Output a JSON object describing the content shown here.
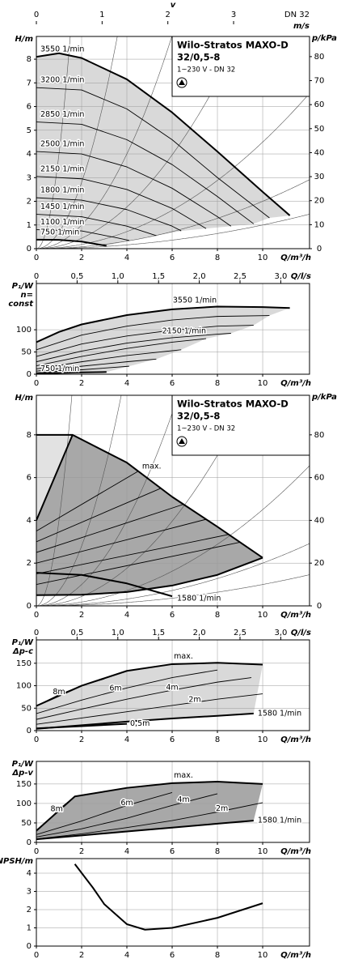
{
  "chart_data": [
    {
      "type": "line",
      "y_label": [
        "H/m"
      ],
      "y2_label": "p/kPa",
      "x_label": "Q/m³/h",
      "xlim": [
        0,
        12.07
      ],
      "xticks": [
        0,
        2,
        4,
        6,
        8,
        10
      ],
      "ylim": [
        0,
        8.96
      ],
      "yticks": [
        0,
        1,
        2,
        3,
        4,
        5,
        6,
        7,
        8
      ],
      "y2lim": [
        0,
        88.4
      ],
      "y2ticks": [
        0,
        10,
        20,
        30,
        40,
        50,
        60,
        70,
        80
      ],
      "grid": true,
      "system_curves": true,
      "line_color": "#000000",
      "top_axis": {
        "label": "v",
        "unit": "m/s",
        "note": "DN 32",
        "lim": [
          0,
          4.155
        ],
        "ticks": [
          0,
          1,
          2,
          3
        ]
      },
      "info": {
        "name": "Wilo-Stratos MAXO-D",
        "model": "32/0,5-8",
        "supply": "1~230 V - DN 32"
      },
      "fill": {
        "mode": "envelope",
        "color": "#d9d9d9"
      },
      "series": [
        {
          "name": "3550 1/min",
          "bold": true,
          "x": [
            0,
            1,
            2,
            4,
            6,
            8,
            10,
            11.2
          ],
          "values": [
            8.1,
            8.25,
            8.05,
            7.15,
            5.75,
            4.1,
            2.4,
            1.4
          ]
        },
        {
          "name": "3200 1/min",
          "x": [
            0,
            2,
            4,
            6,
            8,
            10.3
          ],
          "values": [
            6.8,
            6.7,
            5.9,
            4.6,
            3.0,
            1.3
          ]
        },
        {
          "name": "2850 1/min",
          "x": [
            0,
            2,
            4,
            6,
            8,
            9.6
          ],
          "values": [
            5.35,
            5.25,
            4.6,
            3.55,
            2.2,
            1.05
          ]
        },
        {
          "name": "2500 1/min",
          "x": [
            0,
            2,
            4,
            6,
            8,
            8.6
          ],
          "values": [
            4.1,
            4.0,
            3.45,
            2.55,
            1.35,
            0.95
          ]
        },
        {
          "name": "2150 1/min",
          "x": [
            0,
            2,
            4,
            6,
            7.5
          ],
          "values": [
            3.05,
            2.95,
            2.5,
            1.7,
            0.85
          ]
        },
        {
          "name": "1800 1/min",
          "x": [
            0,
            2,
            4,
            6,
            6.4
          ],
          "values": [
            2.15,
            2.05,
            1.65,
            0.95,
            0.75
          ]
        },
        {
          "name": "1450 1/min",
          "x": [
            0,
            2,
            4,
            5.3
          ],
          "values": [
            1.45,
            1.35,
            0.95,
            0.55
          ]
        },
        {
          "name": "1100 1/min",
          "x": [
            0,
            2,
            3.6,
            4.1
          ],
          "values": [
            0.8,
            0.75,
            0.45,
            0.35
          ]
        },
        {
          "name": "750 1/min",
          "bold": true,
          "x": [
            0,
            1,
            2,
            3.1
          ],
          "values": [
            0.38,
            0.37,
            0.3,
            0.12
          ]
        }
      ]
    },
    {
      "type": "line",
      "y_label": [
        "P₁/W",
        "n=",
        "const"
      ],
      "x_label": "Q/m³/h",
      "xlim": [
        0,
        12.07
      ],
      "xticks": [
        0,
        2,
        4,
        6,
        8,
        10
      ],
      "ylim": [
        0,
        204
      ],
      "yticks": [
        0,
        50,
        100
      ],
      "grid": true,
      "line_color": "#000000",
      "top_axis": {
        "label": "Q/l/s",
        "lim": [
          0,
          3.353
        ],
        "ticks": [
          0,
          {
            "value": 0.5,
            "label": "0,5"
          },
          {
            "value": 1,
            "label": "1,0"
          },
          {
            "value": 1.5,
            "label": "1,5"
          },
          {
            "value": 2,
            "label": "2,0"
          },
          {
            "value": 2.5,
            "label": "2,5"
          },
          {
            "value": 3,
            "label": "3,0"
          }
        ]
      },
      "fill": {
        "mode": "envelope",
        "color": "#d9d9d9"
      },
      "series": [
        {
          "name": "3550 1/min",
          "bold": true,
          "x": [
            0,
            1,
            2,
            4,
            6,
            8,
            10,
            11.2
          ],
          "values": [
            72,
            95,
            112,
            133,
            146,
            152,
            151,
            149
          ]
        },
        {
          "x": [
            0,
            2,
            4,
            6,
            8,
            10.3
          ],
          "values": [
            55,
            88,
            108,
            122,
            130,
            132
          ]
        },
        {
          "x": [
            0,
            2,
            4,
            6,
            8,
            9.6
          ],
          "values": [
            40,
            68,
            86,
            99,
            108,
            110
          ]
        },
        {
          "x": [
            0,
            2,
            4,
            6,
            8,
            8.6
          ],
          "values": [
            28,
            52,
            70,
            82,
            90,
            92
          ]
        },
        {
          "name": "2150 1/min",
          "x": [
            0,
            2,
            4,
            6,
            7.5
          ],
          "values": [
            19,
            40,
            58,
            72,
            80
          ]
        },
        {
          "x": [
            0,
            2,
            4,
            6,
            6.4
          ],
          "values": [
            12,
            28,
            42,
            53,
            55
          ]
        },
        {
          "x": [
            0,
            2,
            4,
            5.3
          ],
          "values": [
            7,
            18,
            28,
            34
          ]
        },
        {
          "x": [
            0,
            2,
            3.6,
            4.1
          ],
          "values": [
            3,
            10,
            16,
            18
          ]
        },
        {
          "name": "750 1/min",
          "bold": true,
          "x": [
            0,
            1,
            2,
            3.1
          ],
          "values": [
            1,
            3,
            4,
            5
          ]
        }
      ]
    },
    {
      "type": "line",
      "y_label": [
        "H/m"
      ],
      "y2_label": "p/kPa",
      "x_label": "Q/m³/h",
      "xlim": [
        0,
        12.07
      ],
      "xticks": [
        0,
        2,
        4,
        6,
        8,
        10
      ],
      "ylim": [
        0,
        9.85
      ],
      "yticks": [
        0,
        2,
        4,
        6,
        8
      ],
      "y2lim": [
        0,
        98.5
      ],
      "y2ticks": [
        0,
        20,
        40,
        60,
        80
      ],
      "grid": true,
      "system_curves": true,
      "line_color": "#000000",
      "info": {
        "name": "Wilo-Stratos MAXO-D",
        "model": "32/0,5-8",
        "supply": "1~230 V - DN 32"
      },
      "fill": {
        "mode": "band",
        "color": "#a8a8a8",
        "light": "#e2e2e2"
      },
      "series": [
        {
          "name": "max.",
          "bold": true,
          "x": [
            0,
            1.6,
            4,
            6,
            8,
            10
          ],
          "values": [
            8,
            8,
            6.7,
            5.1,
            3.7,
            2.25
          ]
        },
        {
          "bold": true,
          "x": [
            0,
            2,
            4,
            6,
            8,
            10
          ],
          "values": [
            0.5,
            0.52,
            0.65,
            0.95,
            1.45,
            2.25
          ]
        },
        {
          "bold": true,
          "x": [
            0,
            1.6
          ],
          "values": [
            4,
            8
          ]
        },
        {
          "name": "1580 1/min",
          "bold": true,
          "x": [
            0,
            2,
            4,
            6
          ],
          "values": [
            1.55,
            1.45,
            1.05,
            0.45
          ]
        },
        {
          "x": [
            0,
            9
          ],
          "values": [
            1.0,
            2.975
          ]
        },
        {
          "x": [
            0,
            8.5
          ],
          "values": [
            1.5,
            3.34
          ]
        },
        {
          "x": [
            0,
            7.5
          ],
          "values": [
            2.0,
            4.05
          ]
        },
        {
          "x": [
            0,
            6.5
          ],
          "values": [
            2.5,
            4.75
          ]
        },
        {
          "x": [
            0,
            5.5
          ],
          "values": [
            3.0,
            5.5
          ]
        },
        {
          "x": [
            0,
            4.5
          ],
          "values": [
            3.5,
            6.3
          ]
        }
      ]
    },
    {
      "type": "line",
      "y_label": [
        "P₁/W",
        "Δp-c"
      ],
      "x_label": "Q/m³/h",
      "xlim": [
        0,
        12.07
      ],
      "xticks": [
        0,
        2,
        4,
        6,
        8,
        10
      ],
      "ylim": [
        0,
        202
      ],
      "yticks": [
        0,
        50,
        100,
        150
      ],
      "grid": true,
      "line_color": "#000000",
      "top_axis": {
        "label": "Q/l/s",
        "lim": [
          0,
          3.353
        ],
        "ticks": [
          0,
          {
            "value": 0.5,
            "label": "0,5"
          },
          {
            "value": 1,
            "label": "1,0"
          },
          {
            "value": 1.5,
            "label": "1,5"
          },
          {
            "value": 2,
            "label": "2,0"
          },
          {
            "value": 2.5,
            "label": "2,5"
          },
          {
            "value": 3,
            "label": "3,0"
          }
        ]
      },
      "fill": {
        "mode": "band",
        "color": "#d9d9d9"
      },
      "series": [
        {
          "name": "max.",
          "bold": true,
          "x": [
            0,
            2,
            4,
            6,
            8,
            10
          ],
          "values": [
            55,
            100,
            133,
            148,
            151,
            147
          ]
        },
        {
          "name": "1580 1/min",
          "bold": true,
          "x": [
            0,
            2,
            4,
            6,
            8,
            9.6
          ],
          "values": [
            4,
            12,
            20,
            27,
            33,
            38
          ]
        },
        {
          "name": "8m",
          "x": [
            0,
            1,
            2,
            3
          ],
          "values": [
            55,
            80,
            100,
            115
          ]
        },
        {
          "name": "6m",
          "x": [
            0,
            2,
            4,
            6,
            8
          ],
          "values": [
            38,
            68,
            95,
            118,
            135
          ]
        },
        {
          "name": "4m",
          "x": [
            0,
            2,
            4,
            6,
            8,
            9.5
          ],
          "values": [
            25,
            48,
            70,
            90,
            108,
            118
          ]
        },
        {
          "name": "2m",
          "x": [
            0,
            2,
            4,
            6,
            8,
            10
          ],
          "values": [
            14,
            28,
            42,
            56,
            70,
            82
          ]
        },
        {
          "name": "0,5m",
          "bold": true,
          "x": [
            0,
            2,
            4
          ],
          "values": [
            5,
            10,
            15
          ]
        }
      ]
    },
    {
      "type": "line",
      "y_label": [
        "P₁/W",
        "Δp-v"
      ],
      "x_label": "Q/m³/h",
      "xlim": [
        0,
        12.07
      ],
      "xticks": [
        0,
        2,
        4,
        6,
        8,
        10
      ],
      "ylim": [
        0,
        208
      ],
      "yticks": [
        0,
        50,
        100,
        150
      ],
      "grid": true,
      "line_color": "#000000",
      "fill": {
        "mode": "band",
        "color": "#a8a8a8"
      },
      "series": [
        {
          "name": "max.",
          "bold": true,
          "x": [
            0,
            1.7,
            4,
            6,
            8,
            10
          ],
          "values": [
            30,
            118,
            140,
            152,
            156,
            150
          ]
        },
        {
          "name": "1580 1/min",
          "bold": true,
          "x": [
            0,
            2,
            4,
            6,
            8,
            9.6
          ],
          "values": [
            8,
            18,
            28,
            38,
            48,
            56
          ]
        },
        {
          "name": "8m",
          "x": [
            0,
            0.5,
            1,
            1.7
          ],
          "values": [
            30,
            55,
            85,
            118
          ]
        },
        {
          "name": "6m",
          "x": [
            0,
            2,
            4,
            6
          ],
          "values": [
            20,
            55,
            95,
            128
          ]
        },
        {
          "name": "4m",
          "x": [
            0,
            2,
            4,
            6,
            8
          ],
          "values": [
            14,
            35,
            62,
            95,
            125
          ]
        },
        {
          "name": "2m",
          "x": [
            0,
            2,
            4,
            6,
            8,
            10
          ],
          "values": [
            9,
            22,
            38,
            56,
            78,
            102
          ]
        }
      ]
    },
    {
      "type": "line",
      "y_label": [
        "NPSH/m"
      ],
      "x_label": "Q/m³/h",
      "xlim": [
        0,
        12.07
      ],
      "xticks": [
        0,
        2,
        4,
        6,
        8,
        10
      ],
      "ylim": [
        0,
        4.8
      ],
      "yticks": [
        0,
        1,
        2,
        3,
        4
      ],
      "grid": true,
      "line_color": "#000000",
      "series": [
        {
          "bold": true,
          "x": [
            1.7,
            2.5,
            3,
            4,
            4.8,
            6,
            8,
            10
          ],
          "values": [
            4.5,
            3.2,
            2.3,
            1.2,
            0.9,
            1.0,
            1.55,
            2.35
          ]
        }
      ]
    }
  ]
}
